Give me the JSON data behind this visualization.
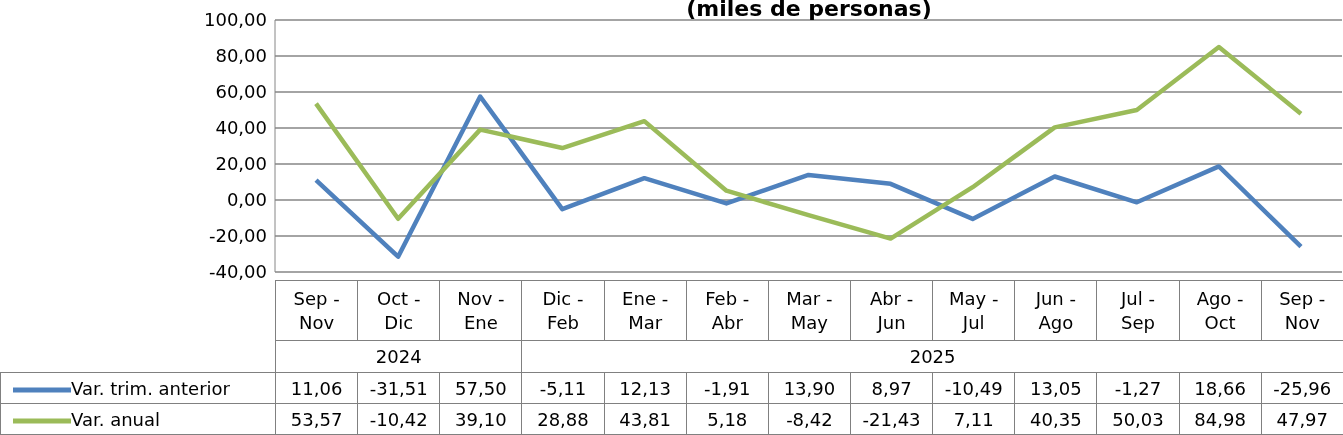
{
  "chart_data": {
    "type": "line",
    "title": "(miles de personas)",
    "categories": [
      "Sep - Nov",
      "Oct - Dic",
      "Nov - Ene",
      "Dic - Feb",
      "Ene - Mar",
      "Feb - Abr",
      "Mar - May",
      "Abr - Jun",
      "May - Jul",
      "Jun - Ago",
      "Jul - Sep",
      "Ago - Oct",
      "Sep - Nov"
    ],
    "annotations": [
      "2024",
      "2025"
    ],
    "series": [
      {
        "name": "Var. trim. anterior",
        "color": "#4f81bd",
        "values": [
          11.06,
          -31.51,
          57.5,
          -5.11,
          12.13,
          -1.91,
          13.9,
          8.97,
          -10.49,
          13.05,
          -1.27,
          18.66,
          -25.96
        ],
        "value_labels": [
          "11,06",
          "-31,51",
          "57,50",
          "-5,11",
          "12,13",
          "-1,91",
          "13,90",
          "8,97",
          "-10,49",
          "13,05",
          "-1,27",
          "18,66",
          "-25,96"
        ]
      },
      {
        "name": "Var. anual",
        "color": "#9bbb59",
        "values": [
          53.57,
          -10.42,
          39.1,
          28.88,
          43.81,
          5.18,
          -8.42,
          -21.43,
          7.11,
          40.35,
          50.03,
          84.98,
          47.97
        ],
        "value_labels": [
          "53,57",
          "-10,42",
          "39,10",
          "28,88",
          "43,81",
          "5,18",
          "-8,42",
          "-21,43",
          "7,11",
          "40,35",
          "50,03",
          "84,98",
          "47,97"
        ]
      }
    ],
    "ylim": [
      -40,
      100
    ],
    "yticks": [
      {
        "value": -40,
        "label": "-40,00"
      },
      {
        "value": -20,
        "label": "-20,00"
      },
      {
        "value": 0,
        "label": "0,00"
      },
      {
        "value": 20,
        "label": "20,00"
      },
      {
        "value": 40,
        "label": "40,00"
      },
      {
        "value": 60,
        "label": "60,00"
      },
      {
        "value": 80,
        "label": "80,00"
      },
      {
        "value": 100,
        "label": "100,00"
      }
    ],
    "grid": "y",
    "legend": "bottom left",
    "marker": "none",
    "line_style": "solid"
  }
}
